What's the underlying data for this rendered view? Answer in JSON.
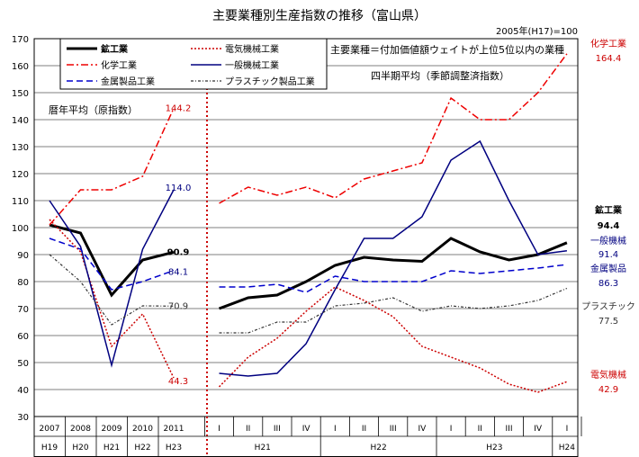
{
  "chart_data": {
    "type": "line",
    "title": "主要業種別生産指数の推移（富山県）",
    "base_note": "2005年(H17)=100",
    "note_main": "主要業種＝付加価値額ウェイトが上位5位以内の業種",
    "annual_label": "暦年平均（原指数）",
    "quarterly_label": "四半期平均（季節調整済指数）",
    "ylim": [
      30,
      170
    ],
    "yticks": [
      30,
      40,
      50,
      60,
      70,
      80,
      90,
      100,
      110,
      120,
      130,
      140,
      150,
      160,
      170
    ],
    "annual_years_top": [
      "2007",
      "2008",
      "2009",
      "2010",
      "2011"
    ],
    "annual_years_bottom": [
      "H19",
      "H20",
      "H21",
      "H22",
      "H23"
    ],
    "quarter_labels": [
      "I",
      "II",
      "III",
      "IV",
      "I",
      "II",
      "III",
      "IV",
      "I",
      "II",
      "III",
      "IV",
      "I"
    ],
    "quarter_year_labels": [
      "H21",
      "H22",
      "H23",
      "H24"
    ],
    "series": [
      {
        "name": "鉱工業",
        "color": "#000000",
        "dash": "solid",
        "width": 3,
        "annual": [
          101,
          98,
          75,
          88,
          90.9
        ],
        "quarterly": [
          70,
          74,
          75,
          80,
          86,
          89,
          88,
          87.5,
          96,
          91,
          88,
          90,
          94.4
        ]
      },
      {
        "name": "電気機械工業",
        "color": "#cc0000",
        "dash": "dot",
        "width": 1.5,
        "annual": [
          103,
          91,
          56,
          68,
          44.3
        ],
        "quarterly": [
          41,
          52,
          59,
          69,
          78,
          73,
          67,
          56,
          52,
          48,
          42,
          39,
          42.9
        ]
      },
      {
        "name": "化学工業",
        "color": "#ee0000",
        "dash": "dashdot",
        "width": 1.5,
        "annual": [
          101,
          114,
          114,
          119,
          144.2
        ],
        "quarterly": [
          109,
          115,
          112,
          115,
          111,
          118,
          121,
          124,
          148,
          140,
          140,
          150,
          164.4
        ]
      },
      {
        "name": "一般機械工業",
        "color": "#000080",
        "dash": "solid",
        "width": 1.5,
        "annual": [
          110,
          93,
          49,
          92,
          114.0
        ],
        "quarterly": [
          46,
          45,
          46,
          57,
          77,
          96,
          96,
          104,
          125,
          132,
          110,
          90,
          91.4
        ]
      },
      {
        "name": "金属製品工業",
        "color": "#0000cc",
        "dash": "dash",
        "width": 1.5,
        "annual": [
          96,
          92,
          77,
          80,
          84.1
        ],
        "quarterly": [
          78,
          78,
          79,
          76,
          82,
          80,
          80,
          80,
          84,
          83,
          84,
          85,
          86.3
        ]
      },
      {
        "name": "プラスチック製品工業",
        "color": "#333333",
        "dash": "dashdot2",
        "width": 1.2,
        "annual": [
          90,
          80,
          64,
          71,
          70.9
        ],
        "quarterly": [
          61,
          61,
          65,
          65,
          71,
          72,
          74,
          69,
          71,
          70,
          71,
          73,
          77.5
        ]
      }
    ],
    "annual_end_labels": {
      "鉱工業": "90.9",
      "電気機械工業": "44.3",
      "化学工業": "144.2",
      "一般機械工業": "114.0",
      "金属製品工業": "84.1",
      "プラスチック製品工業": "70.9"
    },
    "right_labels": [
      {
        "name": "化学工業",
        "value": "164.4"
      },
      {
        "name": "鉱工業",
        "value": "94.4"
      },
      {
        "name": "一般機械",
        "value": "91.4"
      },
      {
        "name": "金属製品",
        "value": "86.3"
      },
      {
        "name": "プラスチック",
        "value": "77.5"
      },
      {
        "name": "電気機械",
        "value": "42.9"
      }
    ],
    "legend": [
      [
        "鉱工業",
        "電気機械工業"
      ],
      [
        "化学工業",
        "一般機械工業"
      ],
      [
        "金属製品工業",
        "プラスチック製品工業"
      ]
    ]
  }
}
